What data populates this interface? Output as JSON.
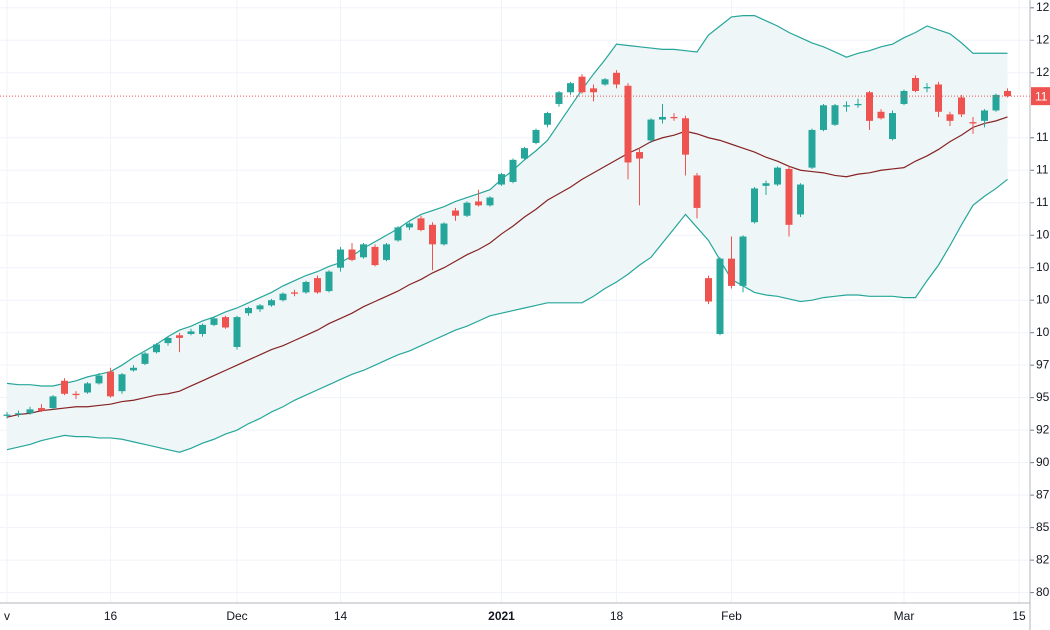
{
  "chart_data": {
    "type": "candlestick",
    "categories": [
      "v",
      null,
      null,
      null,
      null,
      null,
      null,
      null,
      null,
      "16",
      null,
      null,
      null,
      null,
      null,
      null,
      null,
      null,
      null,
      null,
      "Dec",
      null,
      null,
      null,
      null,
      null,
      null,
      null,
      null,
      "14",
      null,
      null,
      null,
      null,
      null,
      null,
      null,
      null,
      null,
      null,
      null,
      null,
      null,
      "2021",
      null,
      null,
      null,
      null,
      null,
      null,
      null,
      null,
      null,
      "18",
      null,
      null,
      null,
      null,
      null,
      null,
      null,
      null,
      null,
      "Feb",
      null,
      null,
      null,
      null,
      null,
      null,
      null,
      null,
      null,
      null,
      null,
      null,
      null,
      null,
      "Mar",
      null,
      null,
      null,
      null,
      null,
      null,
      null,
      null,
      null,
      "15"
    ],
    "open": [
      93.6,
      93.7,
      93.8,
      94.2,
      94.2,
      96.3,
      95.3,
      95.4,
      96.1,
      97.0,
      95.5,
      97.1,
      97.6,
      98.5,
      99.2,
      99.8,
      99.9,
      99.9,
      100.6,
      101.2,
      98.9,
      101.5,
      101.8,
      102.1,
      102.5,
      103.1,
      103.1,
      104.2,
      103.2,
      105.0,
      106.4,
      105.8,
      106.6,
      105.6,
      107.1,
      108.1,
      108.8,
      108.3,
      106.8,
      109.4,
      109.0,
      110.1,
      109.8,
      111.4,
      111.6,
      113.4,
      114.6,
      116.0,
      117.6,
      118.5,
      119.7,
      118.8,
      119.1,
      120.0,
      119.0,
      113.9,
      114.8,
      116.4,
      116.6,
      116.5,
      112.1,
      104.2,
      99.9,
      105.7,
      103.6,
      108.5,
      111.3,
      111.4,
      112.6,
      109.1,
      112.7,
      115.6,
      116.0,
      117.4,
      117.5,
      118.5,
      117.0,
      114.9,
      117.6,
      119.6,
      118.8,
      119.1,
      116.8,
      118.1,
      116.2,
      116.3,
      117.1,
      118.6,
      null
    ],
    "high": [
      93.9,
      94.0,
      94.3,
      94.5,
      95.2,
      96.5,
      95.5,
      96.2,
      96.9,
      97.3,
      96.9,
      97.5,
      98.5,
      99.2,
      99.7,
      100.0,
      100.3,
      100.7,
      101.2,
      101.3,
      101.3,
      102.0,
      102.2,
      102.6,
      103.1,
      103.3,
      104.0,
      104.4,
      104.8,
      106.6,
      106.9,
      106.9,
      106.8,
      106.9,
      108.2,
      108.5,
      109.0,
      108.5,
      108.5,
      109.6,
      110.1,
      111.0,
      110.5,
      112.3,
      113.4,
      114.3,
      115.7,
      117.0,
      118.6,
      119.3,
      119.9,
      119.1,
      119.6,
      120.2,
      119.2,
      114.2,
      116.5,
      117.6,
      116.9,
      116.7,
      112.3,
      104.4,
      105.8,
      107.4,
      107.5,
      111.2,
      111.7,
      112.8,
      112.8,
      111.5,
      115.7,
      117.6,
      117.6,
      117.8,
      118.0,
      118.6,
      117.2,
      117.1,
      118.7,
      119.8,
      119.2,
      119.3,
      117.0,
      118.3,
      116.6,
      117.2,
      118.4,
      118.8,
      null
    ],
    "low": [
      93.4,
      93.5,
      93.7,
      93.9,
      94.1,
      95.2,
      94.9,
      95.3,
      96.0,
      95.0,
      95.3,
      97.0,
      97.5,
      98.4,
      99.0,
      98.5,
      99.8,
      99.7,
      100.5,
      100.3,
      98.7,
      101.3,
      101.6,
      102.0,
      102.4,
      102.8,
      103.0,
      103.0,
      103.1,
      104.7,
      105.5,
      105.7,
      105.1,
      105.5,
      107.0,
      107.9,
      107.8,
      104.8,
      106.7,
      108.6,
      108.9,
      109.7,
      109.7,
      111.3,
      111.5,
      113.3,
      114.5,
      115.8,
      117.4,
      118.3,
      118.4,
      117.8,
      119.0,
      118.8,
      111.8,
      109.8,
      114.6,
      116.1,
      116.3,
      112.1,
      108.8,
      102.2,
      99.8,
      103.4,
      103.1,
      108.4,
      110.6,
      111.3,
      107.4,
      108.9,
      112.6,
      115.5,
      115.9,
      117.0,
      117.3,
      115.6,
      116.4,
      114.8,
      117.5,
      118.5,
      118.5,
      116.6,
      115.9,
      116.6,
      115.3,
      115.8,
      117.0,
      118.1,
      null
    ],
    "close": [
      93.7,
      93.8,
      94.1,
      94.0,
      95.1,
      95.3,
      95.2,
      96.1,
      96.7,
      95.1,
      96.8,
      97.3,
      98.4,
      99.1,
      99.6,
      99.6,
      100.1,
      100.6,
      101.1,
      100.4,
      101.2,
      101.9,
      102.1,
      102.5,
      103.0,
      103.0,
      103.9,
      103.1,
      104.7,
      106.4,
      105.6,
      106.8,
      105.2,
      106.8,
      108.1,
      108.4,
      107.9,
      106.8,
      108.4,
      109.0,
      110.0,
      109.8,
      110.4,
      112.2,
      113.3,
      114.2,
      115.6,
      116.9,
      118.5,
      119.2,
      118.5,
      118.5,
      119.5,
      119.1,
      113.1,
      113.4,
      116.4,
      116.6,
      116.5,
      113.7,
      109.6,
      102.4,
      105.7,
      103.6,
      107.4,
      111.1,
      111.5,
      112.7,
      108.3,
      111.4,
      115.6,
      117.5,
      117.5,
      117.5,
      117.6,
      116.3,
      116.5,
      116.9,
      118.6,
      118.6,
      118.9,
      117.0,
      116.3,
      116.8,
      116.1,
      117.1,
      118.3,
      118.2,
      null
    ],
    "up_color": "#26a69a",
    "down_color": "#ef5350",
    "bands": {
      "upper": [
        96.1,
        96.0,
        96.0,
        95.9,
        95.9,
        96.1,
        96.3,
        96.6,
        96.8,
        97.0,
        97.5,
        98.1,
        98.6,
        99.1,
        99.7,
        100.2,
        100.5,
        100.9,
        101.2,
        101.6,
        101.9,
        102.3,
        102.7,
        103.1,
        103.6,
        104.0,
        104.4,
        104.7,
        105.1,
        105.4,
        105.9,
        106.5,
        107.0,
        107.5,
        108.0,
        108.6,
        109.1,
        109.4,
        109.7,
        110.1,
        110.4,
        110.7,
        111.0,
        111.8,
        112.5,
        113.3,
        114.0,
        114.8,
        116.1,
        117.4,
        118.7,
        119.9,
        121.0,
        122.2,
        122.1,
        122.0,
        121.9,
        121.8,
        121.8,
        121.7,
        121.6,
        122.9,
        123.6,
        124.3,
        124.4,
        124.4,
        124.0,
        123.6,
        123.1,
        122.7,
        122.3,
        122.0,
        121.6,
        121.2,
        121.5,
        121.7,
        122.0,
        122.2,
        122.7,
        123.1,
        123.6,
        123.3,
        123.0,
        122.3,
        121.5,
        121.5,
        121.5,
        121.5,
        null
      ],
      "middle": [
        93.5,
        93.7,
        93.8,
        94.0,
        94.1,
        94.2,
        94.3,
        94.3,
        94.4,
        94.5,
        94.7,
        94.8,
        95.0,
        95.2,
        95.3,
        95.5,
        95.9,
        96.3,
        96.7,
        97.1,
        97.5,
        97.9,
        98.3,
        98.7,
        99.0,
        99.4,
        99.8,
        100.2,
        100.7,
        101.1,
        101.5,
        102.0,
        102.4,
        102.8,
        103.2,
        103.7,
        104.1,
        104.6,
        105.0,
        105.5,
        106.0,
        106.4,
        106.9,
        107.6,
        108.2,
        108.9,
        109.5,
        110.2,
        110.7,
        111.2,
        111.8,
        112.3,
        112.8,
        113.3,
        113.8,
        114.2,
        114.7,
        115.0,
        115.2,
        115.5,
        115.3,
        115.0,
        114.8,
        114.5,
        114.2,
        113.9,
        113.5,
        113.2,
        112.8,
        112.5,
        112.4,
        112.3,
        112.1,
        112.0,
        112.2,
        112.3,
        112.5,
        112.6,
        112.7,
        113.2,
        113.6,
        114.1,
        114.7,
        115.2,
        115.8,
        116.1,
        116.3,
        116.6,
        null
      ],
      "lower": [
        91.0,
        91.2,
        91.4,
        91.7,
        91.9,
        92.1,
        92.0,
        92.0,
        91.9,
        91.9,
        91.8,
        91.6,
        91.4,
        91.2,
        91.0,
        90.8,
        91.1,
        91.5,
        91.8,
        92.2,
        92.5,
        93.0,
        93.4,
        93.9,
        94.3,
        94.8,
        95.2,
        95.6,
        96.0,
        96.4,
        96.8,
        97.1,
        97.5,
        97.9,
        98.3,
        98.6,
        99.0,
        99.4,
        99.8,
        100.2,
        100.5,
        100.9,
        101.3,
        101.5,
        101.7,
        101.9,
        102.1,
        102.3,
        102.3,
        102.3,
        102.3,
        102.8,
        103.4,
        103.9,
        104.5,
        105.2,
        105.8,
        106.9,
        108.0,
        109.1,
        108.1,
        107.1,
        105.6,
        104.1,
        103.6,
        103.1,
        102.9,
        102.8,
        102.6,
        102.4,
        102.5,
        102.7,
        102.8,
        102.9,
        102.9,
        102.8,
        102.8,
        102.8,
        102.7,
        102.7,
        104.0,
        105.2,
        106.7,
        108.3,
        109.8,
        110.5,
        111.1,
        111.8,
        null
      ],
      "band_color": "#26a69a",
      "middle_color": "#872323",
      "fill_color": "#eef6f8"
    },
    "last_price_label": "11",
    "ylim": [
      79.2,
      125.6
    ],
    "yticks": [
      {
        "value": 125,
        "label": "12"
      },
      {
        "value": 122.5,
        "label": "12"
      },
      {
        "value": 120,
        "label": "12"
      },
      {
        "value": 115,
        "label": "11"
      },
      {
        "value": 112.5,
        "label": "11"
      },
      {
        "value": 110,
        "label": "11"
      },
      {
        "value": 107.5,
        "label": "10"
      },
      {
        "value": 105,
        "label": "10"
      },
      {
        "value": 102.5,
        "label": "10"
      },
      {
        "value": 100,
        "label": "10"
      },
      {
        "value": 97.5,
        "label": "97"
      },
      95,
      {
        "value": 92.5,
        "label": "92"
      },
      90,
      {
        "value": 87.5,
        "label": "87"
      },
      85,
      {
        "value": 82.5,
        "label": "82"
      },
      80
    ],
    "grid": true
  }
}
